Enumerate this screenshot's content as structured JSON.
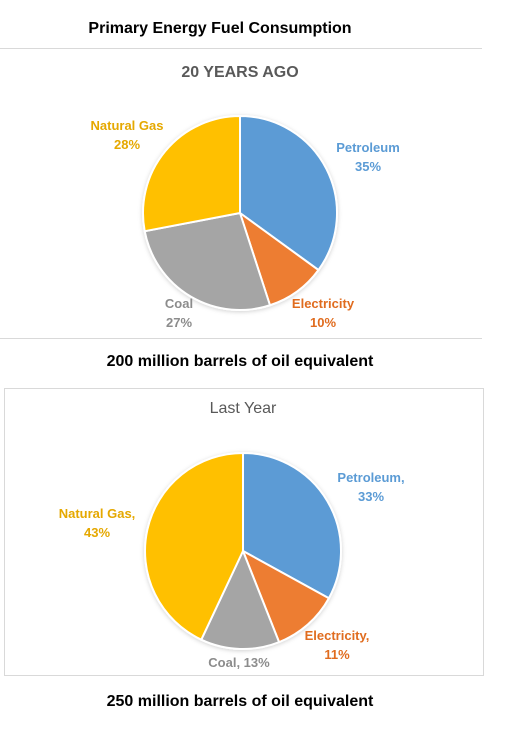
{
  "page": {
    "title": "Primary Energy Fuel Consumption",
    "caption_top": "200 million barrels of oil equivalent",
    "caption_bottom": "250 million barrels of oil equivalent"
  },
  "chart_data": [
    {
      "type": "pie",
      "title": "20 YEARS AGO",
      "slices": [
        {
          "name": "Petroleum",
          "value": 35,
          "label_lines": [
            "Petroleum",
            "35%"
          ],
          "color": "#5b9bd5"
        },
        {
          "name": "Electricity",
          "value": 10,
          "label_lines": [
            "Electricity",
            "10%"
          ],
          "color": "#ed7d31"
        },
        {
          "name": "Coal",
          "value": 27,
          "label_lines": [
            "Coal",
            "27%"
          ],
          "color": "#a5a5a5"
        },
        {
          "name": "Natural Gas",
          "value": 28,
          "label_lines": [
            "Natural Gas",
            "28%"
          ],
          "color": "#ffc000"
        }
      ]
    },
    {
      "type": "pie",
      "title": "Last Year",
      "slices": [
        {
          "name": "Petroleum",
          "value": 33,
          "label_lines": [
            "Petroleum,",
            "33%"
          ],
          "color": "#5b9bd5"
        },
        {
          "name": "Electricity",
          "value": 11,
          "label_lines": [
            "Electricity,",
            "11%"
          ],
          "color": "#ed7d31"
        },
        {
          "name": "Coal",
          "value": 13,
          "label_lines": [
            "Coal, 13%"
          ],
          "color": "#a5a5a5"
        },
        {
          "name": "Natural Gas",
          "value": 43,
          "label_lines": [
            "Natural Gas,",
            "43%"
          ],
          "color": "#ffc000"
        }
      ]
    }
  ]
}
